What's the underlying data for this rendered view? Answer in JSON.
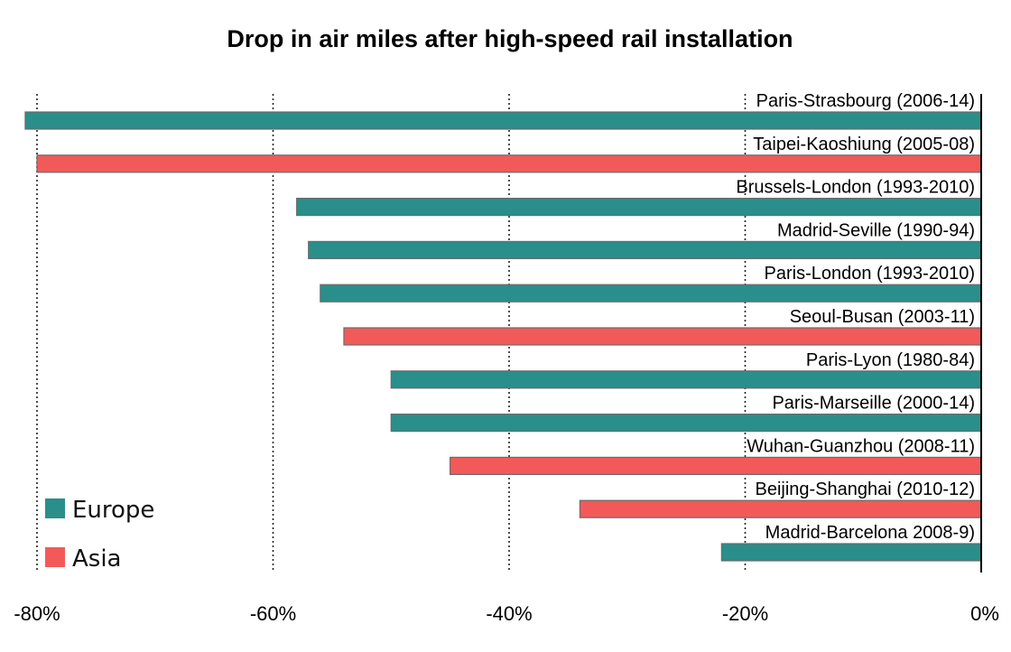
{
  "chart_data": {
    "type": "bar",
    "orientation": "horizontal",
    "title": "Drop in air miles after high-speed rail installation",
    "xlabel": "",
    "ylabel": "",
    "xlim": [
      -80,
      0
    ],
    "x_ticks": [
      -80,
      -60,
      -40,
      -20,
      0
    ],
    "x_tick_labels": [
      "-80%",
      "-60%",
      "-40%",
      "-20%",
      "0%"
    ],
    "grid": "vertical dotted lines at -80%, -60%, -40%",
    "legend": {
      "placement": "bottom-left",
      "entries": [
        {
          "name": "Europe",
          "color": "#2a8e8a"
        },
        {
          "name": "Asia",
          "color": "#f25a5a"
        }
      ]
    },
    "categories": [
      "Paris-Strasbourg (2006-14)",
      "Taipei-Kaoshiung (2005-08)",
      "Brussels-London (1993-2010)",
      "Madrid-Seville (1990-94)",
      "Paris-London (1993-2010)",
      "Seoul-Busan (2003-11)",
      "Paris-Lyon (1980-84)",
      "Paris-Marseille (2000-14)",
      "Wuhan-Guanzhou (2008-11)",
      "Beijing-Shanghai (2010-12)",
      "Madrid-Barcelona 2008-9)"
    ],
    "values": [
      -81,
      -80,
      -58,
      -57,
      -56,
      -54,
      -50,
      -50,
      -45,
      -34,
      -22
    ],
    "regions": [
      "Europe",
      "Asia",
      "Europe",
      "Europe",
      "Europe",
      "Asia",
      "Europe",
      "Europe",
      "Asia",
      "Asia",
      "Europe"
    ]
  }
}
